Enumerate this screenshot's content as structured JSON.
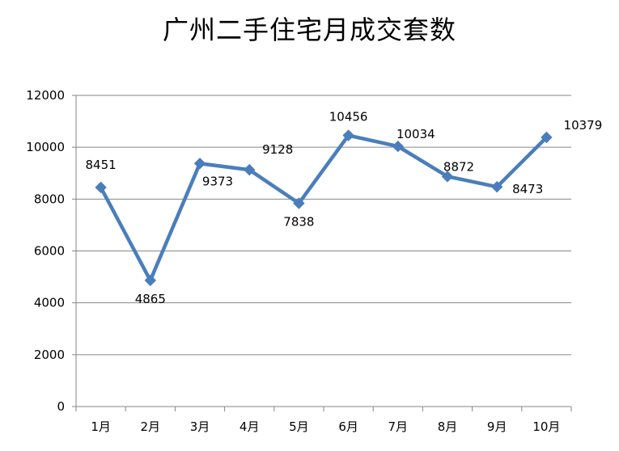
{
  "chart_data": {
    "type": "line",
    "title": "广州二手住宅月成交套数",
    "categories": [
      "1月",
      "2月",
      "3月",
      "4月",
      "5月",
      "6月",
      "7月",
      "8月",
      "9月",
      "10月"
    ],
    "series": [
      {
        "values": [
          8451,
          4865,
          9373,
          9128,
          7838,
          10456,
          10034,
          8872,
          8473,
          10379
        ]
      }
    ],
    "ylim": [
      0,
      12000
    ],
    "yticks": [
      0,
      2000,
      4000,
      6000,
      8000,
      10000,
      12000
    ],
    "grid": true,
    "legend": "none",
    "line_color": "#4A7EBB",
    "grid_color": "#868686",
    "data_labels": true
  }
}
